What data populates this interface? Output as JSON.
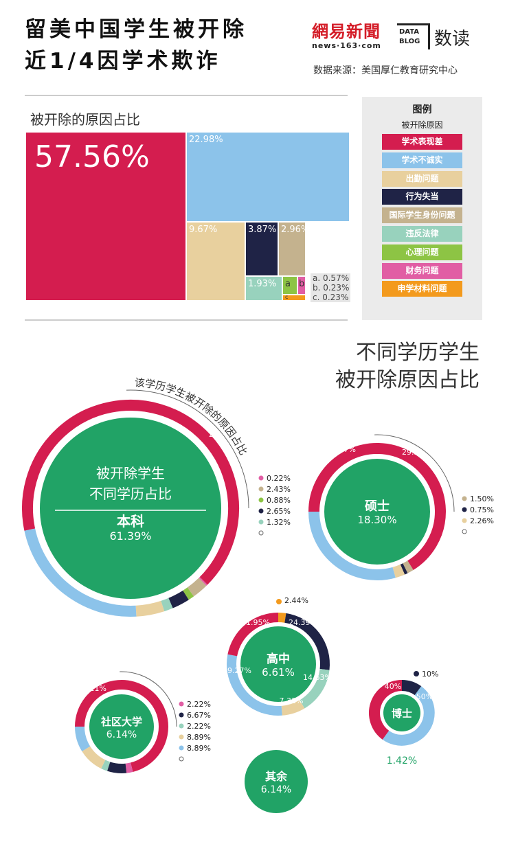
{
  "header": {
    "title_line1": "留美中国学生被开除",
    "title_line2": "近1/4因学术欺诈",
    "brand_logo": "網易新聞",
    "brand_url": "news·163·com",
    "data_blog": "DATA BLOG",
    "brand_suffix": "数读",
    "source": "数据来源：美国厚仁教育研究中心"
  },
  "legend": {
    "title": "图例",
    "subtitle": "被开除原因",
    "items": [
      {
        "label": "学术表现差",
        "color": "#d41d4f"
      },
      {
        "label": "学术不诚实",
        "color": "#8cc3ea"
      },
      {
        "label": "出勤问题",
        "color": "#e8d09e"
      },
      {
        "label": "行为失当",
        "color": "#1f2346"
      },
      {
        "label": "国际学生身份问题",
        "color": "#c4b28e"
      },
      {
        "label": "违反法律",
        "color": "#98d2bd"
      },
      {
        "label": "心理问题",
        "color": "#8dc444"
      },
      {
        "label": "财务问题",
        "color": "#e15ea4"
      },
      {
        "label": "申学材料问题",
        "color": "#f39a1d"
      }
    ]
  },
  "treemap": {
    "title": "被开除的原因占比",
    "small_notes": [
      "a. 0.57%",
      "b. 0.23%",
      "c. 0.23%"
    ]
  },
  "donut_section": {
    "title_line1": "不同学历学生",
    "title_line2": "被开除原因占比",
    "ring_annotation": "该学历学生被开除的原因占比",
    "center_annotation": "被开除学生\n不同学历占比"
  },
  "chart_data": [
    {
      "type": "treemap",
      "title": "被开除的原因占比",
      "items": [
        {
          "label": "学术表现差",
          "value": 57.56,
          "display": "57.56%"
        },
        {
          "label": "学术不诚实",
          "value": 22.98,
          "display": "22.98%"
        },
        {
          "label": "出勤问题",
          "value": 9.67,
          "display": "9.67%"
        },
        {
          "label": "行为失当",
          "value": 3.87,
          "display": "3.87%"
        },
        {
          "label": "国际学生身份问题",
          "value": 2.96,
          "display": "2.96%"
        },
        {
          "label": "违反法律",
          "value": 1.93,
          "display": "1.93%"
        },
        {
          "label": "心理问题",
          "value": 0.57,
          "display": "a"
        },
        {
          "label": "财务问题",
          "value": 0.23,
          "display": "b"
        },
        {
          "label": "申学材料问题",
          "value": 0.23,
          "display": "c"
        }
      ]
    },
    {
      "type": "pie",
      "title": "被开除学生不同学历占比 / 该学历学生被开除的原因占比",
      "degrees": [
        {
          "name": "本科",
          "share": 61.39,
          "share_label": "61.39%",
          "segments": [
            {
              "reason": "学术表现差",
              "value": 65.78,
              "label": "65.78%"
            },
            {
              "reason": "财务问题",
              "value": 0.22,
              "label": "0.22%"
            },
            {
              "reason": "国际学生身份问题",
              "value": 2.43,
              "label": "2.43%"
            },
            {
              "reason": "心理问题",
              "value": 0.88,
              "label": "0.88%"
            },
            {
              "reason": "行为失当",
              "value": 2.65,
              "label": "2.65%"
            },
            {
              "reason": "违反法律",
              "value": 1.32,
              "label": "1.32%"
            },
            {
              "reason": "出勤问题",
              "value": 4.19,
              "label": "4.19%"
            },
            {
              "reason": "学术不诚实",
              "value": 22.52,
              "label": "22.52%"
            }
          ]
        },
        {
          "name": "硕士",
          "share": 18.3,
          "share_label": "18.30%",
          "segments": [
            {
              "reason": "学术表现差",
              "value": 66.17,
              "label": "66.17%"
            },
            {
              "reason": "国际学生身份问题",
              "value": 1.5,
              "label": "1.50%"
            },
            {
              "reason": "行为失当",
              "value": 0.75,
              "label": "0.75%"
            },
            {
              "reason": "出勤问题",
              "value": 2.26,
              "label": "2.26%"
            },
            {
              "reason": "学术不诚实",
              "value": 29.32,
              "label": "29.32%"
            }
          ]
        },
        {
          "name": "高中",
          "share": 6.61,
          "share_label": "6.61%",
          "segments": [
            {
              "reason": "申学材料问题",
              "value": 2.44,
              "label": "2.44%"
            },
            {
              "reason": "行为失当",
              "value": 24.39,
              "label": "24.39%"
            },
            {
              "reason": "违反法律",
              "value": 14.63,
              "label": "14.63%"
            },
            {
              "reason": "出勤问题",
              "value": 7.32,
              "label": "7.32%"
            },
            {
              "reason": "学术不诚实",
              "value": 29.27,
              "label": "29.27%"
            },
            {
              "reason": "学术表现差",
              "value": 21.95,
              "label": "21.95%"
            }
          ]
        },
        {
          "name": "社区大学",
          "share": 6.14,
          "share_label": "6.14%",
          "segments": [
            {
              "reason": "学术表现差",
              "value": 71.11,
              "label": "71.11%"
            },
            {
              "reason": "财务问题",
              "value": 2.22,
              "label": "2.22%"
            },
            {
              "reason": "行为失当",
              "value": 6.67,
              "label": "6.67%"
            },
            {
              "reason": "违反法律",
              "value": 2.22,
              "label": "2.22%"
            },
            {
              "reason": "出勤问题",
              "value": 8.89,
              "label": "8.89%"
            },
            {
              "reason": "学术不诚实",
              "value": 8.89,
              "label": "8.89%"
            }
          ]
        },
        {
          "name": "博士",
          "share": 1.42,
          "share_label": "1.42%",
          "segments": [
            {
              "reason": "行为失当",
              "value": 10,
              "label": "10%"
            },
            {
              "reason": "学术不诚实",
              "value": 50,
              "label": "50%"
            },
            {
              "reason": "学术表现差",
              "value": 40,
              "label": "40%"
            }
          ]
        },
        {
          "name": "其余",
          "share": 6.14,
          "share_label": "6.14%",
          "segments": []
        }
      ]
    }
  ]
}
